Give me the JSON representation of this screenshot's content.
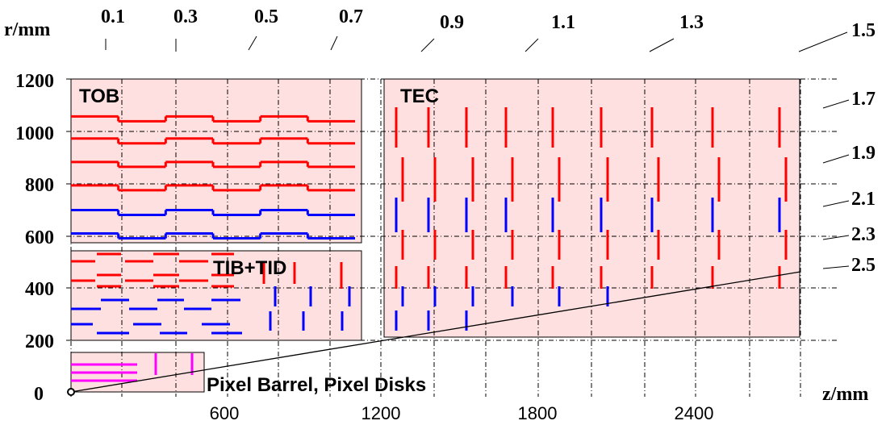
{
  "colors": {
    "region_fill": "#ffe0e0",
    "region_stroke": "#000000",
    "stereo": "#ff0000",
    "mono": "#0000ff",
    "pixel": "#ff00ff",
    "background": "#ffffff"
  },
  "labels": {
    "r_axis": "r/mm",
    "z_axis": "z/mm",
    "tob": "TOB",
    "tec": "TEC",
    "tib_tid": "TIB+TID",
    "pixel": "Pixel Barrel, Pixel Disks"
  },
  "z_ticks": [
    "600",
    "1200",
    "1800",
    "2400"
  ],
  "r_ticks": [
    "0",
    "200",
    "400",
    "600",
    "800",
    "1000",
    "1200"
  ],
  "eta_labels": [
    "0.1",
    "0.3",
    "0.5",
    "0.7",
    "0.9",
    "1.1",
    "1.3",
    "1.5",
    "1.7",
    "1.9",
    "2.1",
    "2.3",
    "2.5"
  ],
  "diagram": {
    "z_range_mm": [
      0,
      2800
    ],
    "r_range_mm": [
      0,
      1200
    ],
    "regions": [
      {
        "name": "TOB",
        "z": [
          0,
          1100
        ],
        "r": [
          555,
          1200
        ]
      },
      {
        "name": "TEC",
        "z": [
          1200,
          2800
        ],
        "r": [
          220,
          1200
        ]
      },
      {
        "name": "TIB+TID",
        "z": [
          0,
          1100
        ],
        "r": [
          220,
          540
        ]
      },
      {
        "name": "Pixel",
        "z": [
          0,
          500
        ],
        "r": [
          0,
          150
        ]
      }
    ]
  }
}
